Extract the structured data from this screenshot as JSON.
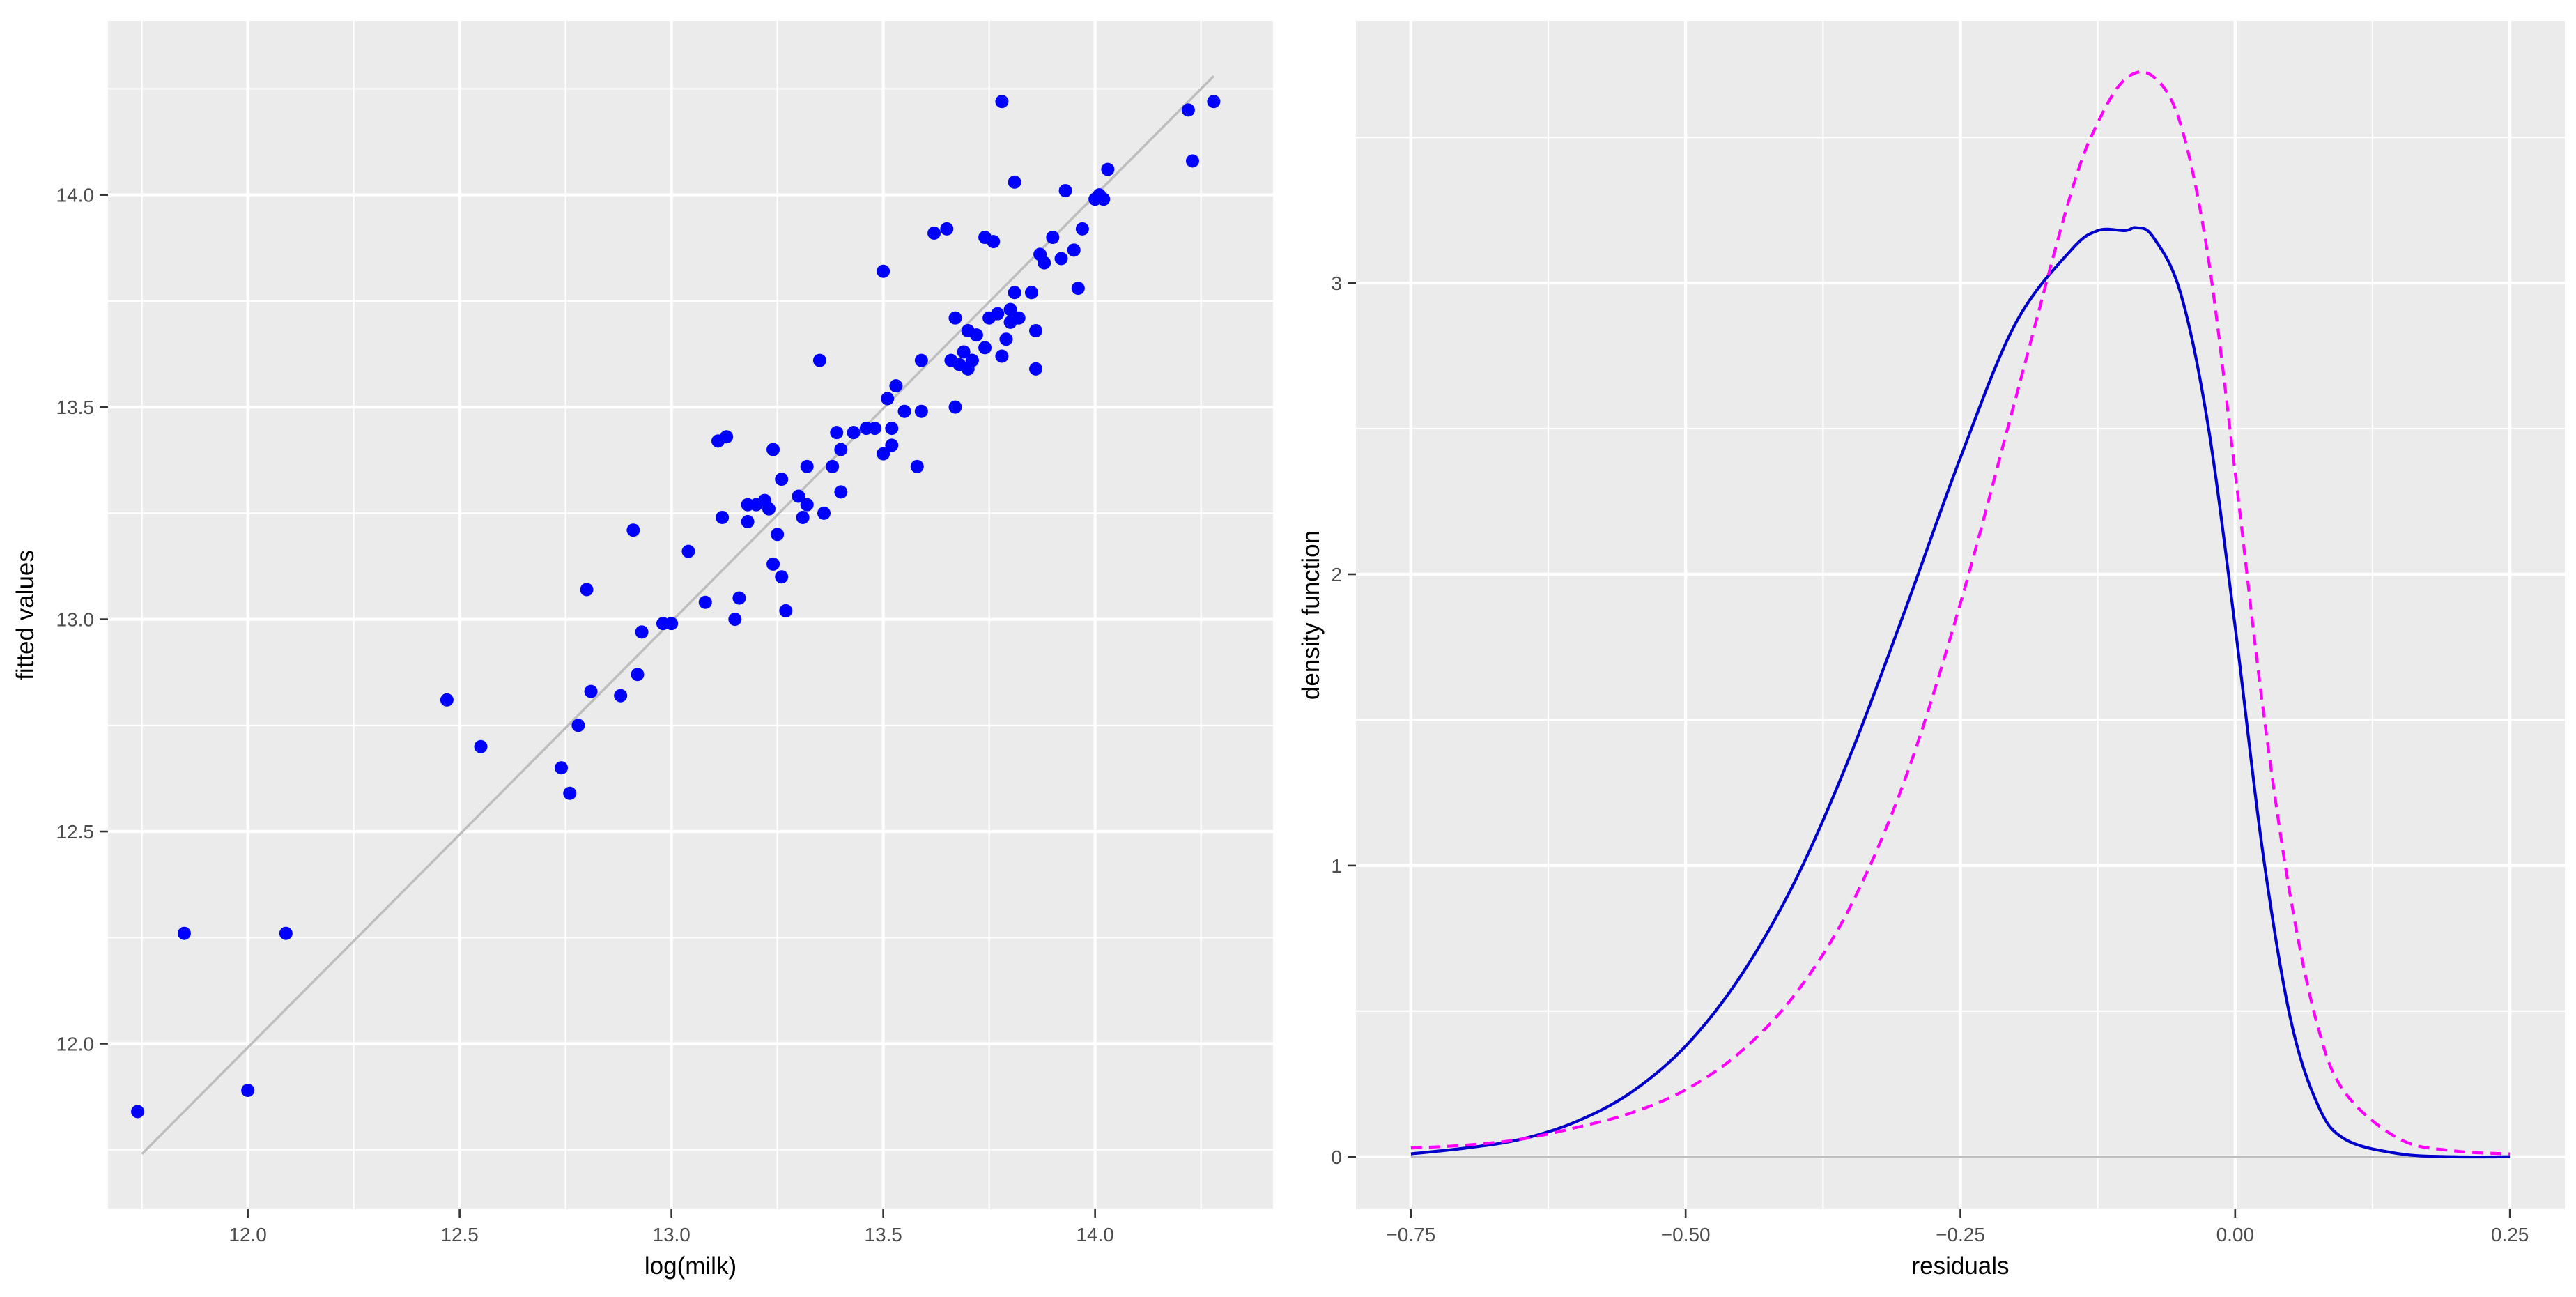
{
  "chart_data": [
    {
      "type": "scatter",
      "xlabel": "log(milk)",
      "ylabel": "fitted values",
      "xlim": [
        11.67,
        14.42
      ],
      "ylim": [
        11.61,
        14.41
      ],
      "x_ticks": [
        12.0,
        12.5,
        13.0,
        13.5,
        14.0
      ],
      "x_tick_labels": [
        "12.0",
        "12.5",
        "13.0",
        "13.5",
        "14.0"
      ],
      "y_ticks": [
        12.0,
        12.5,
        13.0,
        13.5,
        14.0
      ],
      "y_tick_labels": [
        "12.0",
        "12.5",
        "13.0",
        "13.5",
        "14.0"
      ],
      "grid": true,
      "point_color": "#0000FF",
      "reference_line": {
        "x": [
          11.75,
          14.28
        ],
        "y": [
          11.74,
          14.28
        ],
        "color": "#BEBEBE"
      },
      "x": [
        11.74,
        11.85,
        12.0,
        12.09,
        12.47,
        12.55,
        12.74,
        12.76,
        12.78,
        12.8,
        12.81,
        12.88,
        12.91,
        12.92,
        12.93,
        12.98,
        13.0,
        13.04,
        13.08,
        13.11,
        13.12,
        13.13,
        13.15,
        13.16,
        13.18,
        13.18,
        13.2,
        13.22,
        13.23,
        13.24,
        13.24,
        13.25,
        13.26,
        13.26,
        13.27,
        13.3,
        13.31,
        13.32,
        13.32,
        13.35,
        13.36,
        13.38,
        13.39,
        13.4,
        13.4,
        13.43,
        13.46,
        13.48,
        13.5,
        13.5,
        13.51,
        13.52,
        13.52,
        13.53,
        13.55,
        13.58,
        13.59,
        13.59,
        13.62,
        13.65,
        13.66,
        13.67,
        13.67,
        13.68,
        13.69,
        13.7,
        13.7,
        13.71,
        13.71,
        13.72,
        13.74,
        13.74,
        13.75,
        13.76,
        13.77,
        13.78,
        13.78,
        13.79,
        13.8,
        13.8,
        13.81,
        13.81,
        13.82,
        13.85,
        13.86,
        13.86,
        13.87,
        13.88,
        13.9,
        13.92,
        13.93,
        13.95,
        13.96,
        13.97,
        14.0,
        14.01,
        14.02,
        14.03,
        14.22,
        14.23,
        14.28
      ],
      "y": [
        11.84,
        12.26,
        11.89,
        12.26,
        12.81,
        12.7,
        12.65,
        12.59,
        12.75,
        13.07,
        12.83,
        12.82,
        13.21,
        12.87,
        12.97,
        12.99,
        12.99,
        13.16,
        13.04,
        13.42,
        13.24,
        13.43,
        13.0,
        13.05,
        13.27,
        13.23,
        13.27,
        13.28,
        13.26,
        13.13,
        13.4,
        13.2,
        13.1,
        13.33,
        13.02,
        13.29,
        13.24,
        13.36,
        13.27,
        13.61,
        13.25,
        13.36,
        13.44,
        13.3,
        13.4,
        13.44,
        13.45,
        13.45,
        13.82,
        13.39,
        13.52,
        13.45,
        13.41,
        13.55,
        13.49,
        13.36,
        13.49,
        13.61,
        13.91,
        13.92,
        13.61,
        13.71,
        13.5,
        13.6,
        13.63,
        13.59,
        13.68,
        13.61,
        13.61,
        13.67,
        13.9,
        13.64,
        13.71,
        13.89,
        13.72,
        14.22,
        13.62,
        13.66,
        13.73,
        13.7,
        13.77,
        14.03,
        13.71,
        13.77,
        13.59,
        13.68,
        13.86,
        13.84,
        13.9,
        13.85,
        14.01,
        13.87,
        13.78,
        13.92,
        13.99,
        14.0,
        13.99,
        14.06,
        14.2,
        14.08,
        14.22
      ]
    },
    {
      "type": "line",
      "xlabel": "residuals",
      "ylabel": "density function",
      "xlim": [
        -0.8,
        0.3
      ],
      "ylim": [
        -0.18,
        3.9
      ],
      "x_ticks": [
        -0.75,
        -0.5,
        -0.25,
        0.0,
        0.25
      ],
      "x_tick_labels": [
        "−0.75",
        "−0.50",
        "−0.25",
        "0.00",
        "0.25"
      ],
      "y_ticks": [
        0,
        1,
        2,
        3
      ],
      "y_tick_labels": [
        "0",
        "1",
        "2",
        "3"
      ],
      "grid": true,
      "baseline": {
        "y": 0,
        "color": "#BEBEBE"
      },
      "series": [
        {
          "color": "#0000CD",
          "dash": "solid",
          "x": [
            -0.75,
            -0.7,
            -0.65,
            -0.6,
            -0.55,
            -0.5,
            -0.45,
            -0.4,
            -0.35,
            -0.3,
            -0.25,
            -0.2,
            -0.15,
            -0.125,
            -0.1,
            -0.09,
            -0.075,
            -0.05,
            -0.025,
            0.0,
            0.025,
            0.05,
            0.075,
            0.1,
            0.15,
            0.2,
            0.25
          ],
          "y": [
            0.01,
            0.03,
            0.06,
            0.12,
            0.22,
            0.38,
            0.62,
            0.95,
            1.38,
            1.88,
            2.4,
            2.86,
            3.11,
            3.18,
            3.18,
            3.19,
            3.16,
            2.97,
            2.52,
            1.82,
            1.05,
            0.48,
            0.18,
            0.06,
            0.01,
            0.0,
            0.0
          ]
        },
        {
          "color": "#FF00FF",
          "dash": "dashed",
          "x": [
            -0.75,
            -0.7,
            -0.65,
            -0.6,
            -0.55,
            -0.5,
            -0.45,
            -0.4,
            -0.35,
            -0.3,
            -0.25,
            -0.2,
            -0.15,
            -0.125,
            -0.1,
            -0.075,
            -0.05,
            -0.025,
            0.0,
            0.025,
            0.05,
            0.075,
            0.1,
            0.15,
            0.2,
            0.25
          ],
          "y": [
            0.03,
            0.04,
            0.06,
            0.1,
            0.15,
            0.23,
            0.36,
            0.56,
            0.86,
            1.3,
            1.9,
            2.6,
            3.3,
            3.55,
            3.7,
            3.71,
            3.55,
            3.1,
            2.35,
            1.55,
            0.9,
            0.45,
            0.22,
            0.06,
            0.02,
            0.01
          ]
        }
      ]
    }
  ]
}
